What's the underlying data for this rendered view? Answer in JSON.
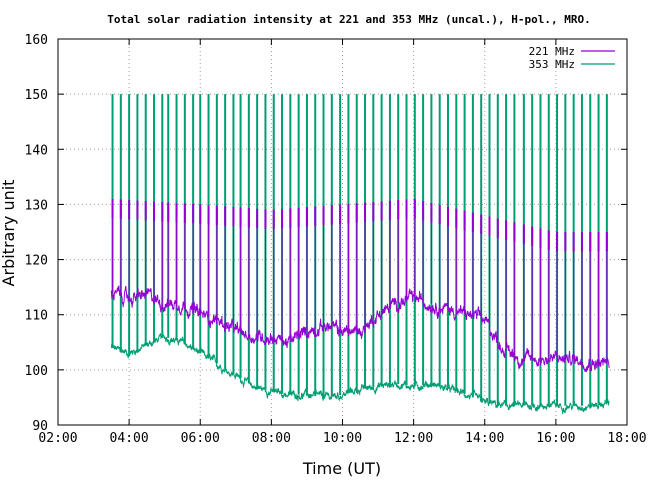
{
  "chart_data": {
    "type": "line",
    "title": "Total solar radiation intensity at 221 and 353 MHz (uncal.), H-pol., MRO.",
    "xlabel": "Time (UT)",
    "ylabel": "Arbitrary unit",
    "xlim": [
      "02:00",
      "18:00"
    ],
    "ylim": [
      90,
      160
    ],
    "x_ticks": [
      "02:00",
      "04:00",
      "06:00",
      "08:00",
      "10:00",
      "12:00",
      "14:00",
      "16:00",
      "18:00"
    ],
    "y_ticks": [
      "90",
      "100",
      "110",
      "120",
      "130",
      "140",
      "150",
      "160"
    ],
    "grid": true,
    "legend_position": "top-right",
    "series": [
      {
        "name": "221 MHz",
        "color": "#9400d3",
        "baseline": [
          [
            "03:30",
            114
          ],
          [
            "04:00",
            113
          ],
          [
            "04:30",
            113.5
          ],
          [
            "05:00",
            112
          ],
          [
            "05:30",
            112
          ],
          [
            "06:00",
            110
          ],
          [
            "06:30",
            109
          ],
          [
            "07:00",
            107
          ],
          [
            "07:30",
            106
          ],
          [
            "08:00",
            106
          ],
          [
            "08:30",
            105
          ],
          [
            "09:00",
            107
          ],
          [
            "09:30",
            108
          ],
          [
            "10:00",
            107
          ],
          [
            "10:30",
            107
          ],
          [
            "11:00",
            110
          ],
          [
            "11:30",
            112
          ],
          [
            "12:00",
            113
          ],
          [
            "12:30",
            112
          ],
          [
            "13:00",
            111
          ],
          [
            "13:30",
            110
          ],
          [
            "14:00",
            109
          ],
          [
            "14:30",
            104
          ],
          [
            "15:00",
            102
          ],
          [
            "15:30",
            102
          ],
          [
            "16:00",
            102
          ],
          [
            "16:30",
            102
          ],
          [
            "17:00",
            101.5
          ],
          [
            "17:30",
            101
          ]
        ],
        "noise": 1.0,
        "spike_peak": [
          [
            "03:30",
            131
          ],
          [
            "06:00",
            130
          ],
          [
            "08:00",
            129
          ],
          [
            "10:00",
            130
          ],
          [
            "12:00",
            131
          ],
          [
            "14:00",
            128
          ],
          [
            "16:00",
            125
          ],
          [
            "17:30",
            125
          ]
        ],
        "spike_floor_offset": 3.5
      },
      {
        "name": "353 MHz",
        "color": "#009e73",
        "baseline": [
          [
            "03:30",
            104
          ],
          [
            "04:00",
            103
          ],
          [
            "04:30",
            104.5
          ],
          [
            "05:00",
            106
          ],
          [
            "05:30",
            105
          ],
          [
            "06:00",
            103
          ],
          [
            "06:30",
            101
          ],
          [
            "07:00",
            99
          ],
          [
            "07:30",
            97
          ],
          [
            "08:00",
            96
          ],
          [
            "08:30",
            95.5
          ],
          [
            "09:00",
            95.5
          ],
          [
            "09:30",
            95
          ],
          [
            "10:00",
            95.5
          ],
          [
            "10:30",
            96.5
          ],
          [
            "11:00",
            97
          ],
          [
            "11:30",
            97.5
          ],
          [
            "12:00",
            97
          ],
          [
            "12:30",
            97.5
          ],
          [
            "13:00",
            96.5
          ],
          [
            "13:30",
            95.5
          ],
          [
            "14:00",
            94
          ],
          [
            "14:30",
            93.5
          ],
          [
            "15:00",
            93.5
          ],
          [
            "15:30",
            93.5
          ],
          [
            "16:00",
            93.5
          ],
          [
            "16:30",
            93.5
          ],
          [
            "17:00",
            93.5
          ],
          [
            "17:30",
            94
          ]
        ],
        "noise": 0.6,
        "spike_peak": 150
      }
    ],
    "calibration_spikes": [
      "03:32",
      "03:46",
      "04:00",
      "04:14",
      "04:28",
      "04:42",
      "04:56",
      "05:06",
      "05:20",
      "05:34",
      "05:48",
      "06:00",
      "06:14",
      "06:28",
      "06:42",
      "06:56",
      "07:08",
      "07:22",
      "07:36",
      "07:50",
      "08:04",
      "08:18",
      "08:32",
      "08:46",
      "09:00",
      "09:14",
      "09:28",
      "09:42",
      "09:56",
      "10:10",
      "10:24",
      "10:38",
      "10:52",
      "11:06",
      "11:20",
      "11:34",
      "11:48",
      "12:02",
      "12:16",
      "12:30",
      "12:44",
      "12:58",
      "13:12",
      "13:26",
      "13:40",
      "13:54",
      "14:08",
      "14:22",
      "14:36",
      "14:50",
      "15:06",
      "15:20",
      "15:34",
      "15:48",
      "16:02",
      "16:16",
      "16:30",
      "16:44",
      "16:58",
      "17:12",
      "17:26"
    ]
  }
}
